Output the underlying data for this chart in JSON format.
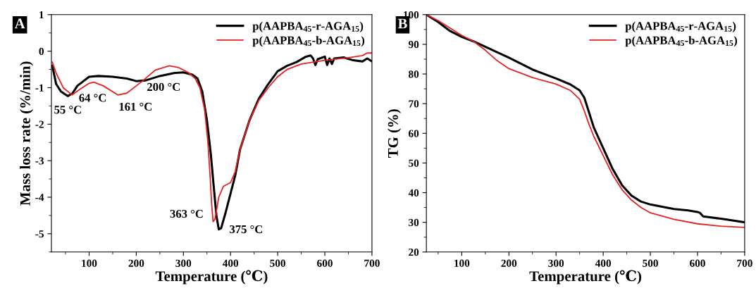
{
  "chart_data": [
    {
      "type": "line",
      "title": "A",
      "xlabel": "Temperature (℃)",
      "ylabel": "Mass loss rate (%/min)",
      "xlim": [
        20,
        700
      ],
      "xticks": [
        100,
        200,
        300,
        400,
        500,
        600,
        700
      ],
      "ylim": [
        -5.5,
        1
      ],
      "yticks": [
        -5,
        -4,
        -3,
        -2,
        -1,
        0,
        1
      ],
      "grid": false,
      "legend": "top right",
      "line_style": "solid",
      "marker": "none",
      "series": [
        {
          "name": "p(AAPBA$_{45}$-r-AGA$_{15}$)",
          "color": "#000000",
          "x": [
            22,
            30,
            40,
            55,
            65,
            75,
            90,
            100,
            120,
            150,
            180,
            200,
            220,
            250,
            280,
            300,
            320,
            330,
            340,
            350,
            358,
            365,
            370,
            375,
            380,
            390,
            400,
            410,
            420,
            440,
            460,
            480,
            500,
            520,
            540,
            560,
            570,
            575,
            580,
            585,
            600,
            605,
            610,
            615,
            620,
            640,
            660,
            680,
            690,
            700
          ],
          "values": [
            -0.4,
            -0.9,
            -1.1,
            -1.23,
            -1.15,
            -0.95,
            -0.8,
            -0.7,
            -0.68,
            -0.7,
            -0.75,
            -0.82,
            -0.8,
            -0.68,
            -0.6,
            -0.58,
            -0.65,
            -0.75,
            -1.1,
            -1.9,
            -2.8,
            -3.8,
            -4.5,
            -4.88,
            -4.85,
            -4.4,
            -3.9,
            -3.4,
            -2.7,
            -1.9,
            -1.3,
            -0.9,
            -0.55,
            -0.4,
            -0.3,
            -0.15,
            -0.12,
            -0.2,
            -0.38,
            -0.22,
            -0.15,
            -0.38,
            -0.2,
            -0.35,
            -0.2,
            -0.17,
            -0.25,
            -0.28,
            -0.2,
            -0.28
          ]
        },
        {
          "name": "p(AAPBA$_{45}$-b-AGA$_{15}$)",
          "color": "#e8211f",
          "x": [
            22,
            30,
            45,
            64,
            80,
            100,
            110,
            130,
            161,
            180,
            200,
            215,
            240,
            270,
            290,
            310,
            325,
            335,
            345,
            352,
            357,
            360,
            363,
            367,
            375,
            385,
            400,
            410,
            420,
            440,
            460,
            480,
            500,
            520,
            550,
            600,
            650,
            680,
            690,
            700
          ],
          "values": [
            -0.3,
            -0.6,
            -1.0,
            -1.2,
            -1.05,
            -0.88,
            -0.85,
            -0.95,
            -1.2,
            -1.15,
            -0.95,
            -0.8,
            -0.52,
            -0.4,
            -0.45,
            -0.58,
            -0.75,
            -1.0,
            -1.6,
            -2.5,
            -3.5,
            -4.2,
            -4.67,
            -4.6,
            -4.0,
            -3.7,
            -3.6,
            -3.3,
            -2.7,
            -1.9,
            -1.35,
            -1.0,
            -0.7,
            -0.5,
            -0.35,
            -0.25,
            -0.18,
            -0.12,
            -0.05,
            -0.05
          ]
        }
      ],
      "annotations": [
        {
          "text": "55 °C",
          "x": 55,
          "y": -1.23
        },
        {
          "text": "64 °C",
          "x": 64,
          "y": -1.2
        },
        {
          "text": "161 °C",
          "x": 161,
          "y": -1.2
        },
        {
          "text": "200 °C",
          "x": 200,
          "y": -0.82
        },
        {
          "text": "363 °C",
          "x": 363,
          "y": -4.67
        },
        {
          "text": "375 °C",
          "x": 375,
          "y": -4.88
        }
      ]
    },
    {
      "type": "line",
      "title": "B",
      "xlabel": "Temperature (℃)",
      "ylabel": "TG (%)",
      "xlim": [
        25,
        700
      ],
      "xticks": [
        100,
        200,
        300,
        400,
        500,
        600,
        700
      ],
      "ylim": [
        20,
        100
      ],
      "yticks": [
        20,
        30,
        40,
        50,
        60,
        70,
        80,
        90,
        100
      ],
      "grid": false,
      "legend": "top right",
      "line_style": "solid",
      "marker": "none",
      "series": [
        {
          "name": "p(AAPBA$_{45}$-r-AGA$_{15}$)",
          "color": "#000000",
          "x": [
            25,
            50,
            75,
            100,
            125,
            150,
            200,
            250,
            300,
            330,
            350,
            360,
            370,
            380,
            400,
            420,
            440,
            460,
            480,
            500,
            550,
            580,
            600,
            605,
            612,
            650,
            700
          ],
          "values": [
            100,
            97.5,
            94.5,
            92.5,
            91,
            89.2,
            85.5,
            81.5,
            78.5,
            76.5,
            74.5,
            72,
            67,
            62,
            55,
            48,
            42.5,
            39,
            37,
            36,
            34.5,
            34,
            33.5,
            33.2,
            32,
            31.2,
            30
          ]
        },
        {
          "name": "p(AAPBA$_{45}$-b-AGA$_{15}$)",
          "color": "#e8211f",
          "x": [
            25,
            50,
            75,
            100,
            125,
            150,
            175,
            200,
            250,
            300,
            330,
            350,
            360,
            370,
            380,
            400,
            420,
            440,
            460,
            480,
            500,
            550,
            600,
            650,
            700
          ],
          "values": [
            100,
            98,
            95.5,
            93,
            91,
            88,
            84.5,
            81.8,
            78.8,
            76.6,
            74.5,
            71.5,
            67.5,
            63,
            59,
            52.5,
            46,
            41,
            37.5,
            35,
            33.2,
            31,
            29.5,
            28.7,
            28.3
          ]
        }
      ]
    }
  ]
}
